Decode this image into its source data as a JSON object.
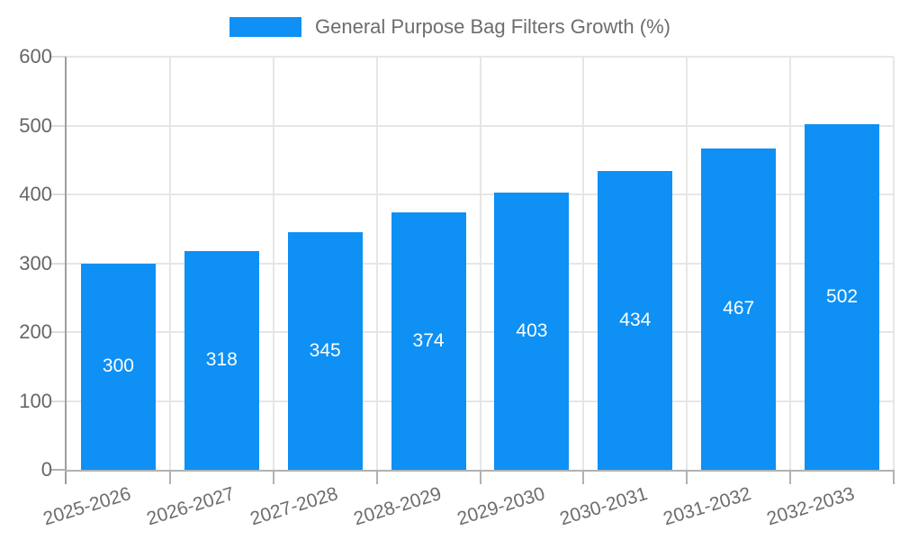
{
  "legend": {
    "label": "General Purpose Bag Filters Growth (%)"
  },
  "chart_data": {
    "type": "bar",
    "title": "General Purpose Bag Filters Growth (%)",
    "categories": [
      "2025-2026",
      "2026-2027",
      "2027-2028",
      "2028-2029",
      "2029-2030",
      "2030-2031",
      "2031-2032",
      "2032-2033"
    ],
    "values": [
      300,
      318,
      345,
      374,
      403,
      434,
      467,
      502
    ],
    "xlabel": "",
    "ylabel": "",
    "ylim": [
      0,
      600
    ],
    "yticks": [
      0,
      100,
      200,
      300,
      400,
      500,
      600
    ],
    "grid": true,
    "legend_position": "top",
    "bar_color": "#0e90f5",
    "value_label_color": "#ffffff",
    "axis_text_color": "#666666",
    "gridline_color": "#e6e6e6"
  }
}
